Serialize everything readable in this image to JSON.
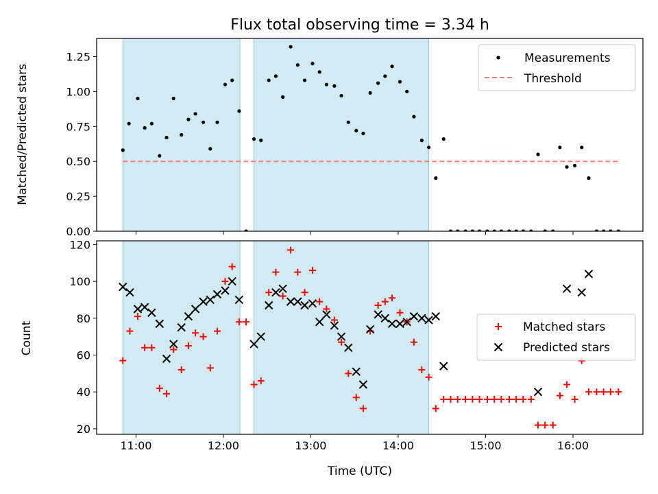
{
  "title": "Flux total observing time = 3.34 h",
  "xlabel": "Time (UTC)",
  "x_ticks": [
    11,
    12,
    13,
    14,
    15,
    16
  ],
  "x_tick_labels": [
    "11:00",
    "12:00",
    "13:00",
    "14:00",
    "15:00",
    "16:00"
  ],
  "shaded_intervals_hours": [
    [
      10.85,
      12.19
    ],
    [
      12.35,
      14.35
    ]
  ],
  "colors": {
    "shade": "#add8e6",
    "measurement": "#000000",
    "threshold": "#f08080",
    "matched": "#ff0000",
    "predicted": "#000000"
  },
  "chart_data": [
    {
      "type": "scatter",
      "ylabel": "Matched/Predicted stars",
      "xlim": [
        10.55,
        16.8
      ],
      "ylim": [
        0,
        1.38
      ],
      "y_ticks": [
        0.0,
        0.25,
        0.5,
        0.75,
        1.0,
        1.25
      ],
      "y_tick_labels": [
        "0.00",
        "0.25",
        "0.50",
        "0.75",
        "1.00",
        "1.25"
      ],
      "legend": {
        "position": "top-right",
        "measurements_label": "Measurements",
        "threshold_label": "Threshold"
      },
      "threshold": {
        "value": 0.5,
        "x_range": [
          10.85,
          16.52
        ]
      },
      "series": [
        {
          "name": "Measurements",
          "points": [
            [
              10.85,
              0.58
            ],
            [
              10.92,
              0.77
            ],
            [
              11.02,
              0.95
            ],
            [
              11.1,
              0.74
            ],
            [
              11.18,
              0.77
            ],
            [
              11.27,
              0.54
            ],
            [
              11.35,
              0.67
            ],
            [
              11.43,
              0.95
            ],
            [
              11.52,
              0.69
            ],
            [
              11.6,
              0.8
            ],
            [
              11.68,
              0.84
            ],
            [
              11.77,
              0.78
            ],
            [
              11.85,
              0.59
            ],
            [
              11.93,
              0.78
            ],
            [
              12.02,
              1.05
            ],
            [
              12.1,
              1.08
            ],
            [
              12.18,
              0.86
            ],
            [
              12.26,
              0.0
            ],
            [
              12.35,
              0.66
            ],
            [
              12.43,
              0.65
            ],
            [
              12.52,
              1.08
            ],
            [
              12.6,
              1.11
            ],
            [
              12.68,
              0.96
            ],
            [
              12.77,
              1.32
            ],
            [
              12.85,
              1.19
            ],
            [
              12.93,
              1.08
            ],
            [
              13.02,
              1.2
            ],
            [
              13.1,
              1.14
            ],
            [
              13.18,
              1.05
            ],
            [
              13.27,
              1.04
            ],
            [
              13.35,
              0.97
            ],
            [
              13.43,
              0.78
            ],
            [
              13.52,
              0.72
            ],
            [
              13.6,
              0.7
            ],
            [
              13.68,
              0.99
            ],
            [
              13.77,
              1.06
            ],
            [
              13.85,
              1.11
            ],
            [
              13.93,
              1.18
            ],
            [
              14.02,
              1.07
            ],
            [
              14.1,
              1.0
            ],
            [
              14.18,
              0.82
            ],
            [
              14.27,
              0.65
            ],
            [
              14.35,
              0.6
            ],
            [
              14.43,
              0.38
            ],
            [
              14.52,
              0.66
            ],
            [
              14.6,
              0.0
            ],
            [
              14.68,
              0.0
            ],
            [
              14.77,
              0.0
            ],
            [
              14.85,
              0.0
            ],
            [
              14.93,
              0.0
            ],
            [
              15.02,
              0.0
            ],
            [
              15.1,
              0.0
            ],
            [
              15.18,
              0.0
            ],
            [
              15.27,
              0.0
            ],
            [
              15.35,
              0.0
            ],
            [
              15.43,
              0.0
            ],
            [
              15.52,
              0.0
            ],
            [
              15.6,
              0.55
            ],
            [
              15.68,
              0.0
            ],
            [
              15.77,
              0.0
            ],
            [
              15.85,
              0.6
            ],
            [
              15.93,
              0.46
            ],
            [
              16.02,
              0.47
            ],
            [
              16.1,
              0.6
            ],
            [
              16.18,
              0.38
            ],
            [
              16.27,
              0.0
            ],
            [
              16.35,
              0.0
            ],
            [
              16.43,
              0.0
            ],
            [
              16.52,
              0.0
            ]
          ]
        }
      ]
    },
    {
      "type": "scatter",
      "ylabel": "Count",
      "xlim": [
        10.55,
        16.8
      ],
      "ylim": [
        17,
        122
      ],
      "y_ticks": [
        20,
        40,
        60,
        80,
        100,
        120
      ],
      "y_tick_labels": [
        "20",
        "40",
        "60",
        "80",
        "100",
        "120"
      ],
      "legend": {
        "position": "center-right",
        "matched_label": "Matched stars",
        "predicted_label": "Predicted stars"
      },
      "series": [
        {
          "name": "Matched stars",
          "marker": "+",
          "points": [
            [
              10.85,
              57
            ],
            [
              10.93,
              73
            ],
            [
              11.02,
              81
            ],
            [
              11.1,
              64
            ],
            [
              11.18,
              64
            ],
            [
              11.27,
              42
            ],
            [
              11.35,
              39
            ],
            [
              11.43,
              63
            ],
            [
              11.52,
              52
            ],
            [
              11.6,
              65
            ],
            [
              11.68,
              72
            ],
            [
              11.77,
              70
            ],
            [
              11.85,
              53
            ],
            [
              11.93,
              73
            ],
            [
              12.02,
              100
            ],
            [
              12.1,
              108
            ],
            [
              12.18,
              78
            ],
            [
              12.26,
              78
            ],
            [
              12.35,
              44
            ],
            [
              12.43,
              46
            ],
            [
              12.52,
              94
            ],
            [
              12.6,
              105
            ],
            [
              12.68,
              92
            ],
            [
              12.77,
              117
            ],
            [
              12.85,
              105
            ],
            [
              12.93,
              94
            ],
            [
              13.02,
              106
            ],
            [
              13.1,
              89
            ],
            [
              13.18,
              85
            ],
            [
              13.27,
              79
            ],
            [
              13.35,
              67
            ],
            [
              13.43,
              50
            ],
            [
              13.52,
              37
            ],
            [
              13.6,
              31
            ],
            [
              13.68,
              73
            ],
            [
              13.77,
              87
            ],
            [
              13.85,
              89
            ],
            [
              13.93,
              91
            ],
            [
              14.02,
              83
            ],
            [
              14.1,
              78
            ],
            [
              14.18,
              67
            ],
            [
              14.27,
              52
            ],
            [
              14.35,
              48
            ],
            [
              14.43,
              31
            ],
            [
              14.52,
              36
            ],
            [
              14.6,
              36
            ],
            [
              14.68,
              36
            ],
            [
              14.77,
              36
            ],
            [
              14.85,
              36
            ],
            [
              14.93,
              36
            ],
            [
              15.02,
              36
            ],
            [
              15.1,
              36
            ],
            [
              15.18,
              36
            ],
            [
              15.27,
              36
            ],
            [
              15.35,
              36
            ],
            [
              15.43,
              36
            ],
            [
              15.52,
              36
            ],
            [
              15.6,
              22
            ],
            [
              15.68,
              22
            ],
            [
              15.77,
              22
            ],
            [
              15.85,
              38
            ],
            [
              15.93,
              44
            ],
            [
              16.02,
              36
            ],
            [
              16.1,
              57
            ],
            [
              16.18,
              40
            ],
            [
              16.27,
              40
            ],
            [
              16.35,
              40
            ],
            [
              16.43,
              40
            ],
            [
              16.52,
              40
            ]
          ]
        },
        {
          "name": "Predicted stars",
          "marker": "x",
          "points": [
            [
              10.85,
              97
            ],
            [
              10.93,
              94
            ],
            [
              11.02,
              85
            ],
            [
              11.1,
              86
            ],
            [
              11.18,
              83
            ],
            [
              11.27,
              77
            ],
            [
              11.35,
              58
            ],
            [
              11.43,
              66
            ],
            [
              11.52,
              75
            ],
            [
              11.6,
              81
            ],
            [
              11.68,
              85
            ],
            [
              11.77,
              89
            ],
            [
              11.85,
              90
            ],
            [
              11.93,
              93
            ],
            [
              12.02,
              95
            ],
            [
              12.1,
              100
            ],
            [
              12.18,
              90
            ],
            [
              12.35,
              66
            ],
            [
              12.43,
              70
            ],
            [
              12.52,
              87
            ],
            [
              12.6,
              94
            ],
            [
              12.68,
              96
            ],
            [
              12.77,
              89
            ],
            [
              12.85,
              89
            ],
            [
              12.93,
              87
            ],
            [
              13.02,
              88
            ],
            [
              13.1,
              78
            ],
            [
              13.18,
              82
            ],
            [
              13.27,
              76
            ],
            [
              13.35,
              70
            ],
            [
              13.43,
              64
            ],
            [
              13.52,
              51
            ],
            [
              13.6,
              44
            ],
            [
              13.68,
              74
            ],
            [
              13.77,
              82
            ],
            [
              13.85,
              80
            ],
            [
              13.93,
              77
            ],
            [
              14.02,
              77
            ],
            [
              14.1,
              78
            ],
            [
              14.18,
              81
            ],
            [
              14.27,
              80
            ],
            [
              14.35,
              79
            ],
            [
              14.43,
              81
            ],
            [
              14.52,
              54
            ],
            [
              15.6,
              40
            ],
            [
              15.93,
              96
            ],
            [
              16.1,
              94
            ],
            [
              16.18,
              104
            ]
          ]
        }
      ]
    }
  ]
}
